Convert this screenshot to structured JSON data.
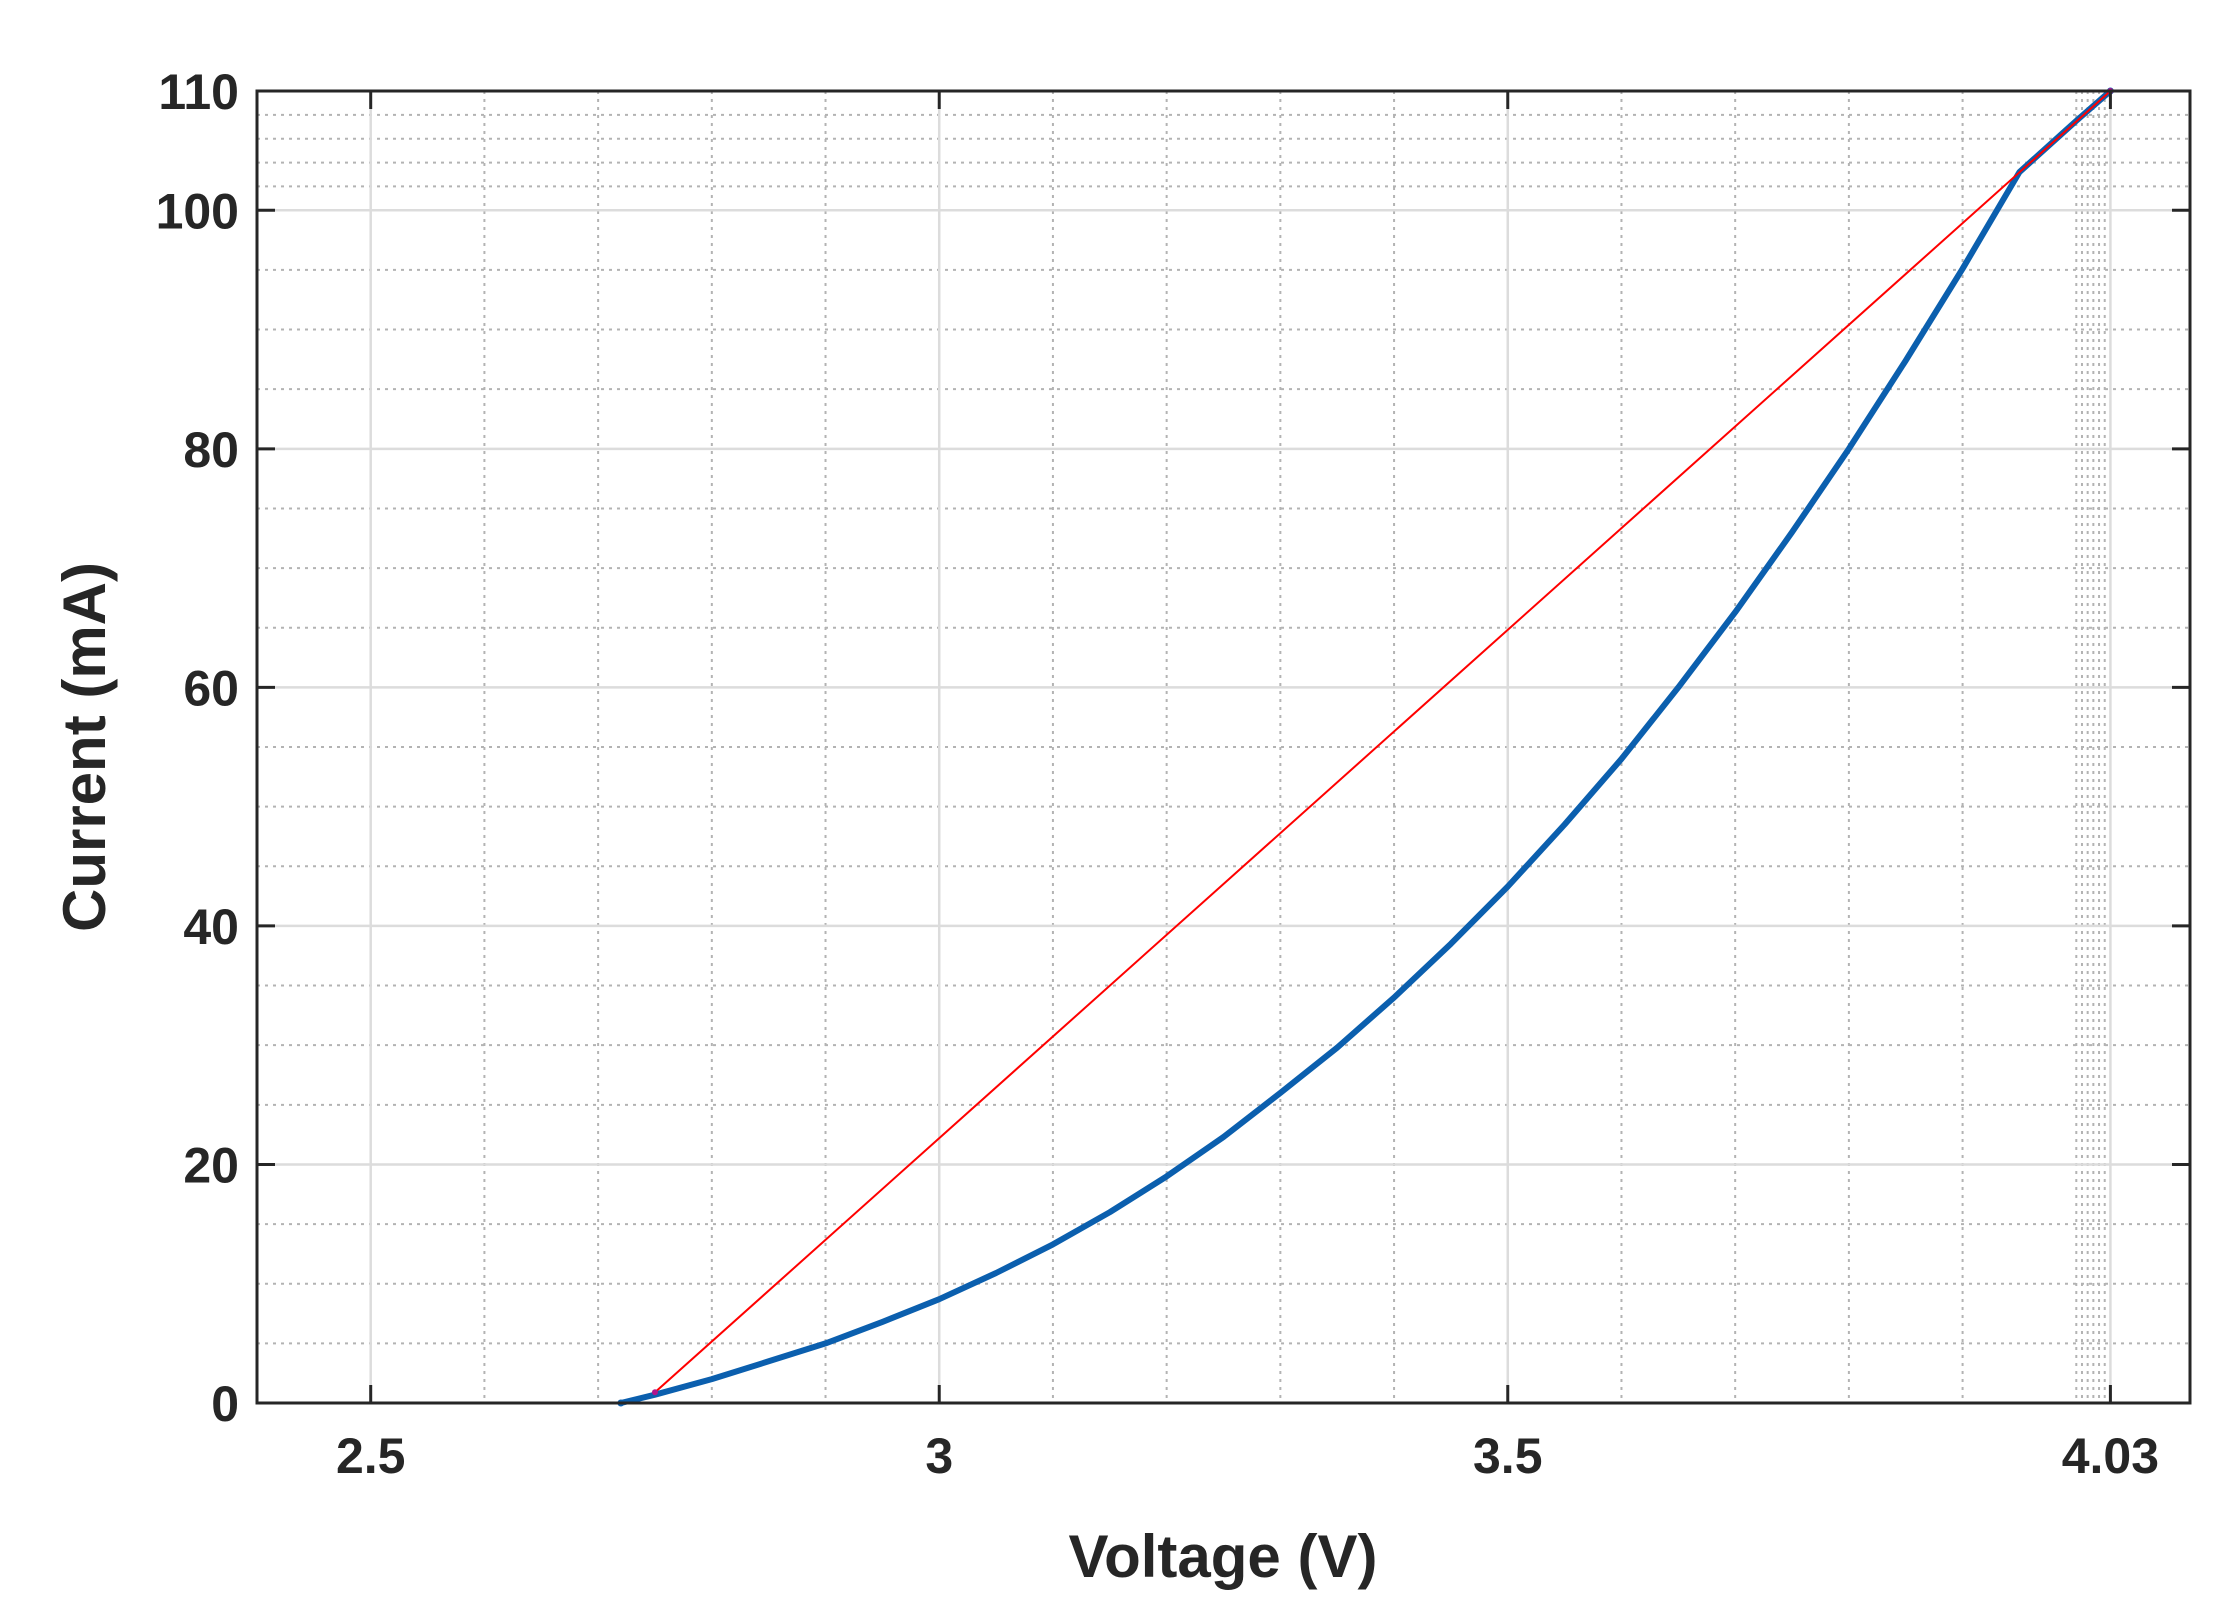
{
  "chart_data": {
    "type": "line",
    "title": "",
    "xlabel": "Voltage (V)",
    "ylabel": "Current (mA)",
    "xlim": [
      2.4,
      4.1
    ],
    "ylim": [
      0,
      110
    ],
    "x_ticks": [
      2.5,
      3,
      3.5,
      4.03
    ],
    "x_tick_labels": [
      "2.5",
      "3",
      "3.5",
      "4.03"
    ],
    "y_ticks": [
      0,
      20,
      40,
      60,
      80,
      100,
      110
    ],
    "y_tick_labels": [
      "0",
      "20",
      "40",
      "60",
      "80",
      "100",
      "110"
    ],
    "x_minor_ticks": [
      2.6,
      2.7,
      2.8,
      2.9,
      3.1,
      3.2,
      3.3,
      3.4,
      3.6,
      3.7,
      3.8,
      3.9,
      4.0,
      4.005,
      4.01,
      4.015,
      4.02,
      4.025
    ],
    "y_minor_ticks": [
      5,
      10,
      15,
      25,
      30,
      35,
      45,
      50,
      55,
      65,
      70,
      75,
      85,
      90,
      95,
      102,
      104,
      106,
      108
    ],
    "grid": true,
    "minor_grid": true,
    "series": [
      {
        "color": "#0b5fae",
        "style": "solid-thick",
        "x": [
          2.72,
          2.75,
          2.8,
          2.85,
          2.9,
          2.95,
          3.0,
          3.05,
          3.1,
          3.15,
          3.2,
          3.25,
          3.3,
          3.35,
          3.4,
          3.45,
          3.5,
          3.55,
          3.6,
          3.65,
          3.7,
          3.75,
          3.8,
          3.85,
          3.9,
          3.95,
          4.0,
          4.03
        ],
        "y": [
          0,
          0.7,
          2.0,
          3.5,
          5.0,
          6.8,
          8.7,
          10.9,
          13.3,
          16.0,
          19.0,
          22.3,
          26.0,
          29.8,
          34.0,
          38.5,
          43.3,
          48.5,
          54.0,
          60.0,
          66.3,
          73.0,
          80.0,
          87.4,
          95.1,
          103.2,
          107.5,
          110
        ]
      },
      {
        "color": "#ff0000",
        "style": "solid-thin",
        "x": [
          2.75,
          4.03
        ],
        "y": [
          0.9,
          110
        ]
      }
    ]
  }
}
